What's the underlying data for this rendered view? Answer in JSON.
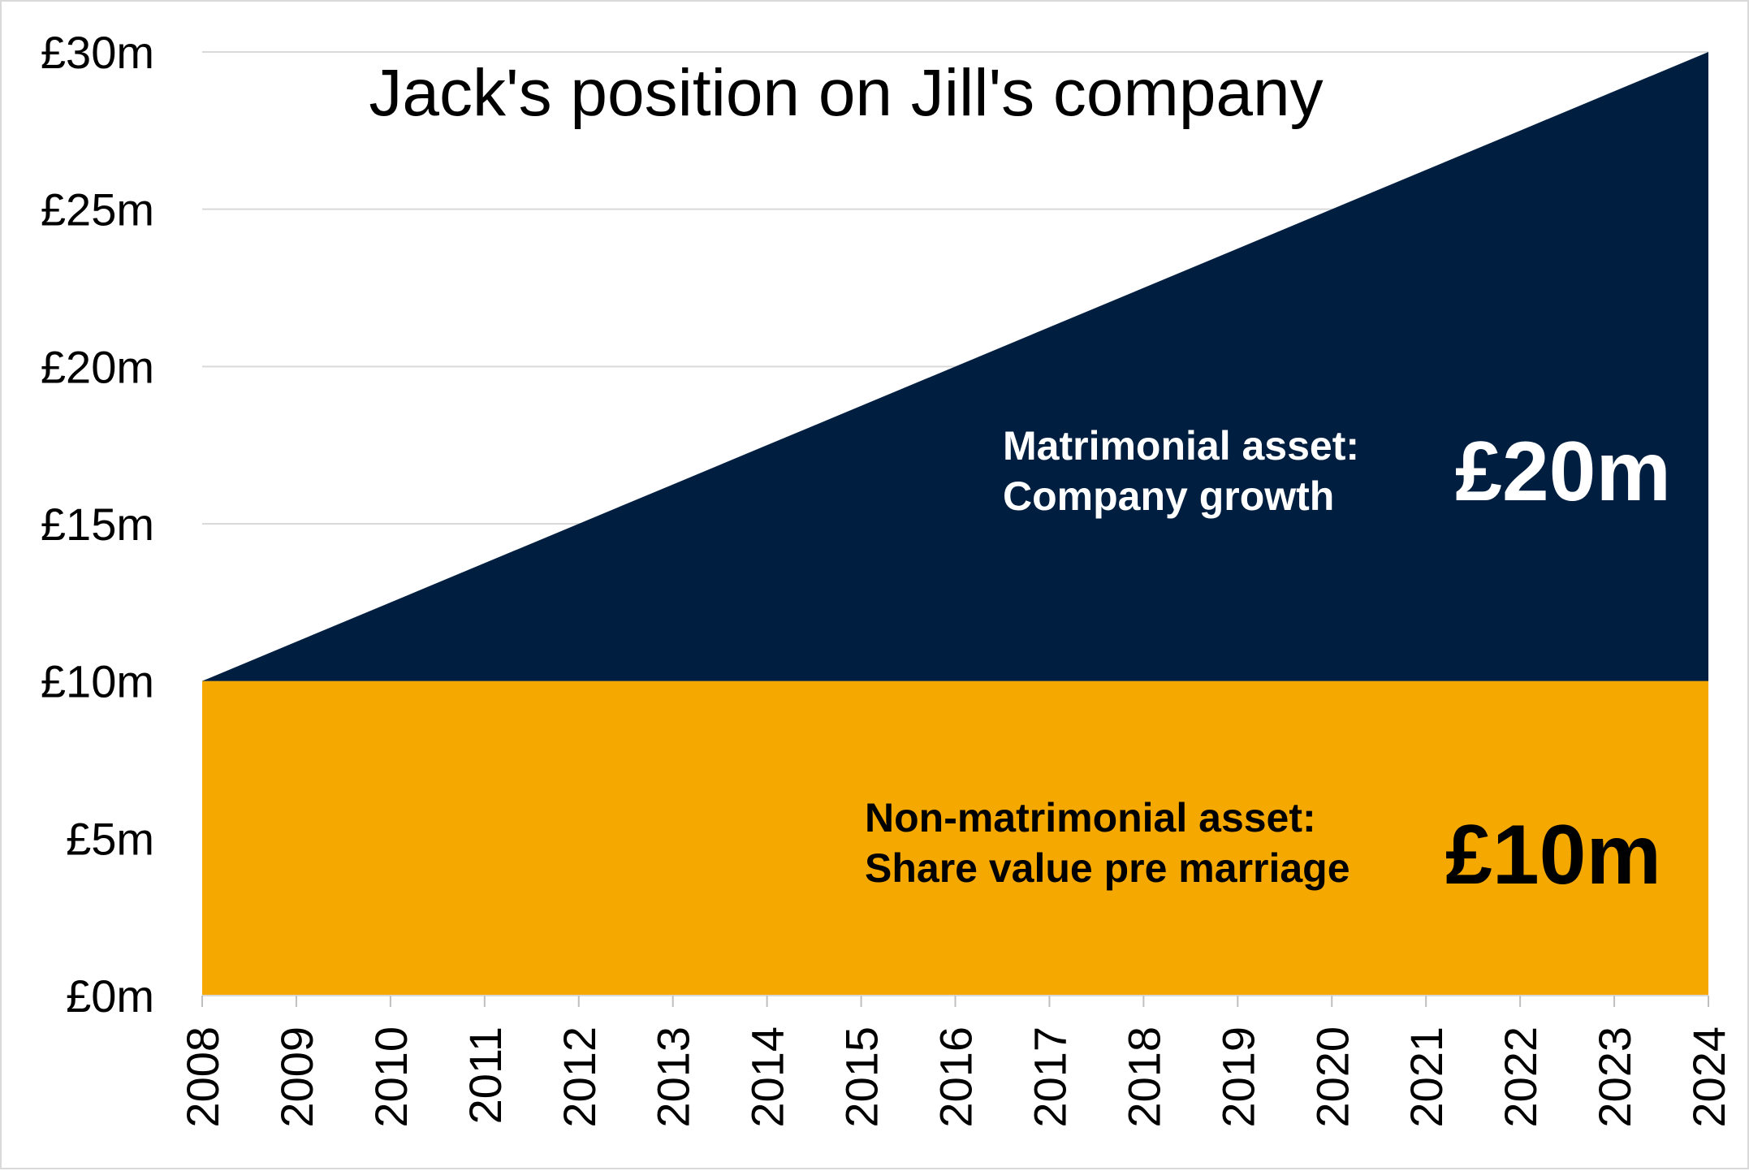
{
  "chart_data": {
    "type": "area",
    "title": "Jack's position on Jill's company",
    "xlabel": "",
    "ylabel": "",
    "x": [
      2008,
      2009,
      2010,
      2011,
      2012,
      2013,
      2014,
      2015,
      2016,
      2017,
      2018,
      2019,
      2020,
      2021,
      2022,
      2023,
      2024
    ],
    "x_tick_labels": [
      "2008",
      "2009",
      "2010",
      "2011",
      "2012",
      "2013",
      "2014",
      "2015",
      "2016",
      "2017",
      "2018",
      "2019",
      "2020",
      "2021",
      "2022",
      "2023",
      "2024"
    ],
    "ylim": [
      0,
      30
    ],
    "y_ticks": [
      0,
      5,
      10,
      15,
      20,
      25,
      30
    ],
    "y_tick_labels": [
      "£0m",
      "£5m",
      "£10m",
      "£15m",
      "£20m",
      "£25m",
      "£30m"
    ],
    "stacked": true,
    "grid": true,
    "legend": "none",
    "series": [
      {
        "values": [
          10,
          10,
          10,
          10,
          10,
          10,
          10,
          10,
          10,
          10,
          10,
          10,
          10,
          10,
          10,
          10,
          10
        ],
        "color": "#F5A800"
      },
      {
        "values": [
          0,
          1.25,
          2.5,
          3.75,
          5,
          6.25,
          7.5,
          8.75,
          10,
          11.25,
          12.5,
          13.75,
          15,
          16.25,
          17.5,
          18.75,
          20
        ],
        "color": "#001F40"
      }
    ],
    "annotations": [
      {
        "line1": "Non-matrimonial asset:",
        "line2": "Share value pre marriage",
        "value_label": "£10m",
        "color": "#000000"
      },
      {
        "line1": "Matrimonial asset:",
        "line2": "Company growth",
        "value_label": "£20m",
        "color": "#ffffff"
      }
    ]
  }
}
